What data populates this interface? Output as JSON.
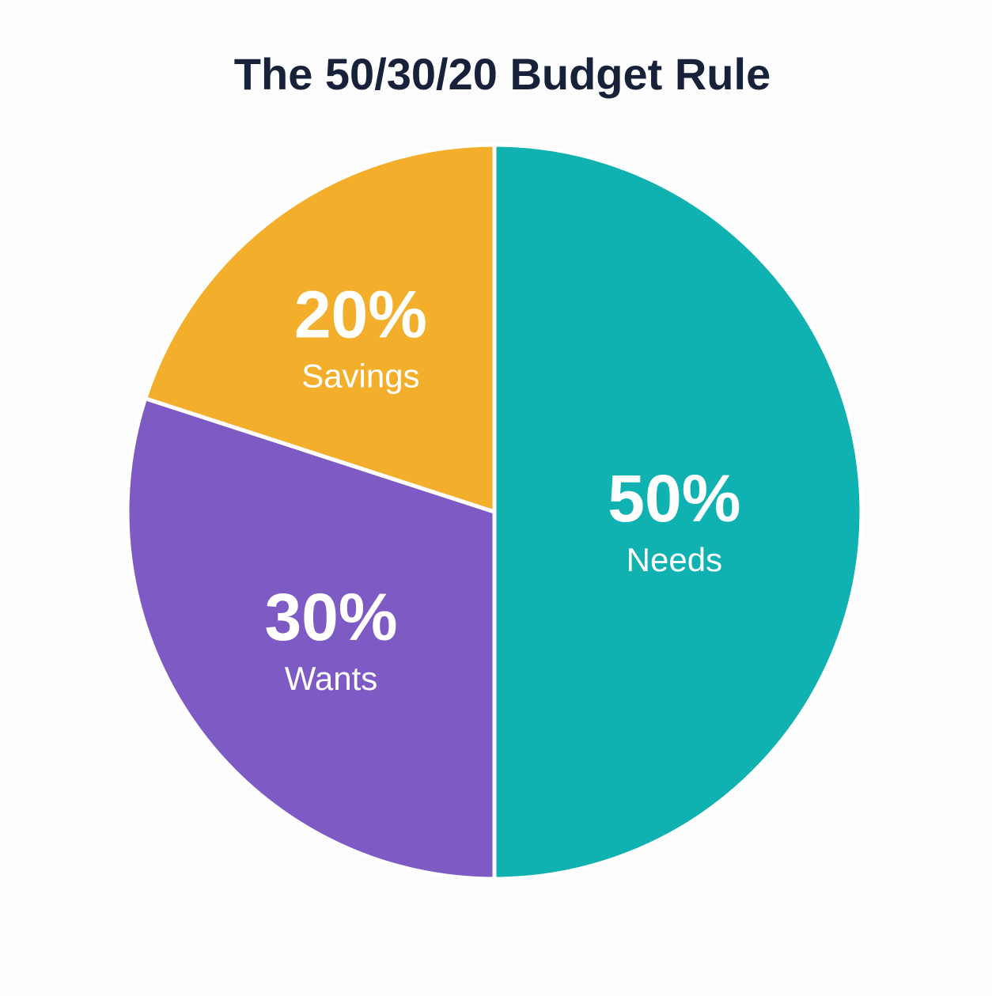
{
  "chart_data": {
    "type": "pie",
    "title": "The 50/30/20 Budget Rule",
    "categories": [
      "Needs",
      "Wants",
      "Savings"
    ],
    "values": [
      50,
      30,
      20
    ],
    "value_labels": [
      "50%",
      "30%",
      "20%"
    ],
    "colors": [
      "#0fb2b0",
      "#7e5bc4",
      "#f3ae2b"
    ]
  }
}
